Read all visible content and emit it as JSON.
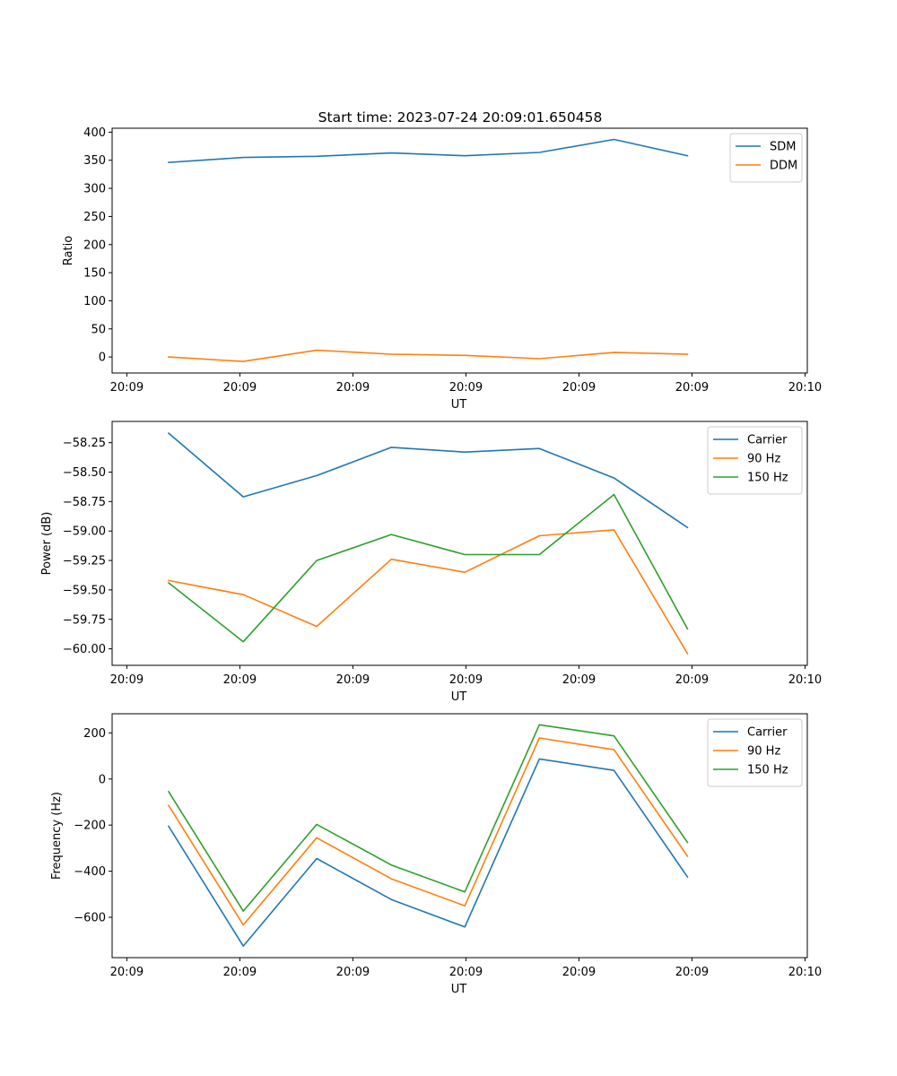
{
  "figure_title": "Start time: 2023-07-24 20:09:01.650458",
  "colors": {
    "blue": "#1f77b4",
    "orange": "#ff7f0e",
    "green": "#2ca02c",
    "axis": "#000000",
    "legend_border": "#cccccc"
  },
  "chart_data": [
    {
      "type": "line",
      "title": "Start time: 2023-07-24 20:09:01.650458",
      "xlabel": "UT",
      "ylabel": "Ratio",
      "x": [
        0.5,
        1.16,
        1.81,
        2.47,
        3.12,
        3.78,
        4.44,
        5.09
      ],
      "xlim": [
        0,
        6.15
      ],
      "x_ticks": [
        0.13,
        1.13,
        2.13,
        3.13,
        4.13,
        5.13,
        6.13
      ],
      "x_tick_labels": [
        "20:09",
        "20:09",
        "20:09",
        "20:09",
        "20:09",
        "20:09",
        "20:10"
      ],
      "ylim": [
        -28.5,
        407
      ],
      "y_ticks": [
        0,
        50,
        100,
        150,
        200,
        250,
        300,
        350,
        400
      ],
      "y_tick_labels": [
        "0",
        "50",
        "100",
        "150",
        "200",
        "250",
        "300",
        "350",
        "400"
      ],
      "legend_position": "top-right",
      "series": [
        {
          "name": "SDM",
          "color": "#1f77b4",
          "values": [
            346,
            355,
            357,
            363,
            358,
            364,
            387,
            358
          ]
        },
        {
          "name": "DDM",
          "color": "#ff7f0e",
          "values": [
            0,
            -8,
            12,
            5,
            3,
            -3,
            8,
            5
          ]
        }
      ]
    },
    {
      "type": "line",
      "xlabel": "UT",
      "ylabel": "Power (dB)",
      "x": [
        0.5,
        1.16,
        1.81,
        2.47,
        3.12,
        3.78,
        4.44,
        5.09
      ],
      "xlim": [
        0,
        6.15
      ],
      "x_ticks": [
        0.13,
        1.13,
        2.13,
        3.13,
        4.13,
        5.13,
        6.13
      ],
      "x_tick_labels": [
        "20:09",
        "20:09",
        "20:09",
        "20:09",
        "20:09",
        "20:09",
        "20:10"
      ],
      "ylim": [
        -60.14,
        -58.07
      ],
      "y_ticks": [
        -60.0,
        -59.75,
        -59.5,
        -59.25,
        -59.0,
        -58.75,
        -58.5,
        -58.25
      ],
      "y_tick_labels": [
        "−60.00",
        "−59.75",
        "−59.50",
        "−59.25",
        "−59.00",
        "−58.75",
        "−58.50",
        "−58.25"
      ],
      "legend_position": "top-right",
      "series": [
        {
          "name": "Carrier",
          "color": "#1f77b4",
          "values": [
            -58.17,
            -58.71,
            -58.53,
            -58.29,
            -58.33,
            -58.3,
            -58.55,
            -58.97
          ]
        },
        {
          "name": "90 Hz",
          "color": "#ff7f0e",
          "values": [
            -59.42,
            -59.54,
            -59.81,
            -59.24,
            -59.35,
            -59.04,
            -58.99,
            -60.04
          ]
        },
        {
          "name": "150 Hz",
          "color": "#2ca02c",
          "values": [
            -59.44,
            -59.94,
            -59.25,
            -59.03,
            -59.2,
            -59.2,
            -58.69,
            -59.83
          ]
        }
      ]
    },
    {
      "type": "line",
      "xlabel": "UT",
      "ylabel": "Frequency (Hz)",
      "x": [
        0.5,
        1.16,
        1.81,
        2.47,
        3.12,
        3.78,
        4.44,
        5.09
      ],
      "xlim": [
        0,
        6.15
      ],
      "x_ticks": [
        0.13,
        1.13,
        2.13,
        3.13,
        4.13,
        5.13,
        6.13
      ],
      "x_tick_labels": [
        "20:09",
        "20:09",
        "20:09",
        "20:09",
        "20:09",
        "20:09",
        "20:10"
      ],
      "ylim": [
        -775,
        283
      ],
      "y_ticks": [
        -600,
        -400,
        -200,
        0,
        200
      ],
      "y_tick_labels": [
        "−600",
        "−400",
        "−200",
        "0",
        "200"
      ],
      "legend_position": "top-right",
      "series": [
        {
          "name": "Carrier",
          "color": "#1f77b4",
          "values": [
            -205,
            -725,
            -345,
            -523,
            -642,
            87,
            37,
            -425
          ]
        },
        {
          "name": "90 Hz",
          "color": "#ff7f0e",
          "values": [
            -115,
            -633,
            -255,
            -433,
            -550,
            178,
            127,
            -335
          ]
        },
        {
          "name": "150 Hz",
          "color": "#2ca02c",
          "values": [
            -55,
            -573,
            -197,
            -373,
            -490,
            235,
            187,
            -275
          ]
        }
      ]
    }
  ]
}
